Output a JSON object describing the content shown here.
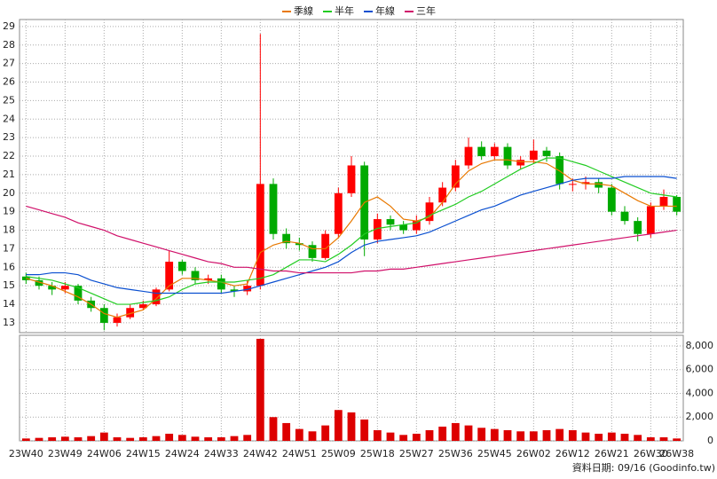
{
  "chart_data": [
    {
      "type": "candlestick",
      "open": [
        15.5,
        15.3,
        15.0,
        14.8,
        15.0,
        14.2,
        13.8,
        13.0,
        13.3,
        13.8,
        14.0,
        14.8,
        16.3,
        15.8,
        15.3,
        15.4,
        14.8,
        14.7,
        15.0,
        20.5,
        17.8,
        17.3,
        17.2,
        16.5,
        17.8,
        20.0,
        21.5,
        17.5,
        18.6,
        18.3,
        18.0,
        18.5,
        19.5,
        20.3,
        21.5,
        22.5,
        22.0,
        22.5,
        21.5,
        21.8,
        22.3,
        22.0,
        20.5,
        20.5,
        20.6,
        20.3,
        19.0,
        18.5,
        17.8,
        19.3,
        19.8
      ],
      "high": [
        15.7,
        15.5,
        15.2,
        15.2,
        15.1,
        14.4,
        14.0,
        13.5,
        14.0,
        14.2,
        14.9,
        16.9,
        16.4,
        16.0,
        15.6,
        15.6,
        15.0,
        15.3,
        28.6,
        20.8,
        18.1,
        17.6,
        17.4,
        18.0,
        20.3,
        22.0,
        21.7,
        18.9,
        18.8,
        18.5,
        18.8,
        19.8,
        20.6,
        21.8,
        23.0,
        22.8,
        22.7,
        22.7,
        22.0,
        22.9,
        22.5,
        22.2,
        20.8,
        20.9,
        20.8,
        20.5,
        19.3,
        18.7,
        19.5,
        20.2,
        19.9
      ],
      "low": [
        15.1,
        14.8,
        14.5,
        14.6,
        14.0,
        13.6,
        12.6,
        12.8,
        13.2,
        13.7,
        13.9,
        14.7,
        15.6,
        15.1,
        15.1,
        14.6,
        14.4,
        14.5,
        14.8,
        17.5,
        17.0,
        16.9,
        16.3,
        16.4,
        17.6,
        19.8,
        16.6,
        17.3,
        18.0,
        17.8,
        17.8,
        18.3,
        19.3,
        20.1,
        21.3,
        21.8,
        21.8,
        21.3,
        21.3,
        21.6,
        21.7,
        20.2,
        20.1,
        20.2,
        20.0,
        18.8,
        18.3,
        17.4,
        17.6,
        19.1,
        18.8
      ],
      "close": [
        15.3,
        15.0,
        14.8,
        15.0,
        14.2,
        13.8,
        13.0,
        13.3,
        13.8,
        14.0,
        14.8,
        16.3,
        15.8,
        15.3,
        15.4,
        14.8,
        14.7,
        15.0,
        20.5,
        17.8,
        17.3,
        17.2,
        16.5,
        17.8,
        20.0,
        21.5,
        17.5,
        18.6,
        18.3,
        18.0,
        18.5,
        19.5,
        20.3,
        21.5,
        22.5,
        22.0,
        22.5,
        21.5,
        21.8,
        22.3,
        22.0,
        20.5,
        20.5,
        20.6,
        20.3,
        19.0,
        18.5,
        17.8,
        19.3,
        19.8,
        19.0
      ],
      "up_color": "#ff0000",
      "down_color": "#00aa00",
      "series": [
        {
          "name": "季線",
          "color": "#e87800",
          "values": [
            15.4,
            15.2,
            15.0,
            14.7,
            14.4,
            14.0,
            13.5,
            13.3,
            13.5,
            13.7,
            14.3,
            15.0,
            15.4,
            15.4,
            15.3,
            15.2,
            15.0,
            15.1,
            16.8,
            17.2,
            17.4,
            17.3,
            17.0,
            17.0,
            17.6,
            18.5,
            19.5,
            19.8,
            19.3,
            18.6,
            18.5,
            18.7,
            19.5,
            20.5,
            21.2,
            21.6,
            21.8,
            21.8,
            21.7,
            21.7,
            21.6,
            21.2,
            20.7,
            20.5,
            20.5,
            20.4,
            20.0,
            19.6,
            19.3,
            19.3,
            19.3
          ]
        },
        {
          "name": "半年",
          "color": "#22cc22",
          "values": [
            15.5,
            15.4,
            15.3,
            15.1,
            14.9,
            14.6,
            14.3,
            14.0,
            14.0,
            14.1,
            14.2,
            14.4,
            14.8,
            15.1,
            15.2,
            15.2,
            15.2,
            15.3,
            15.4,
            15.6,
            16.0,
            16.4,
            16.4,
            16.3,
            16.7,
            17.2,
            17.8,
            18.1,
            18.2,
            18.3,
            18.4,
            18.8,
            19.1,
            19.4,
            19.8,
            20.1,
            20.5,
            20.9,
            21.3,
            21.6,
            21.9,
            21.9,
            21.7,
            21.5,
            21.2,
            20.9,
            20.6,
            20.3,
            20.0,
            19.9,
            19.8
          ]
        },
        {
          "name": "年線",
          "color": "#0a4fd0",
          "values": [
            15.6,
            15.6,
            15.7,
            15.7,
            15.6,
            15.3,
            15.1,
            14.9,
            14.8,
            14.7,
            14.6,
            14.6,
            14.6,
            14.6,
            14.6,
            14.6,
            14.7,
            14.8,
            15.0,
            15.2,
            15.4,
            15.6,
            15.8,
            16.0,
            16.3,
            16.8,
            17.2,
            17.4,
            17.5,
            17.6,
            17.7,
            17.9,
            18.2,
            18.5,
            18.8,
            19.1,
            19.3,
            19.6,
            19.9,
            20.1,
            20.3,
            20.5,
            20.7,
            20.8,
            20.8,
            20.8,
            20.9,
            20.9,
            20.9,
            20.9,
            20.8
          ]
        },
        {
          "name": "三年",
          "color": "#d0106a",
          "values": [
            19.3,
            19.1,
            18.9,
            18.7,
            18.4,
            18.2,
            18.0,
            17.7,
            17.5,
            17.3,
            17.1,
            16.9,
            16.7,
            16.5,
            16.3,
            16.2,
            16.0,
            16.0,
            15.9,
            15.8,
            15.8,
            15.7,
            15.7,
            15.7,
            15.7,
            15.7,
            15.8,
            15.8,
            15.9,
            15.9,
            16.0,
            16.1,
            16.2,
            16.3,
            16.4,
            16.5,
            16.6,
            16.7,
            16.8,
            16.9,
            17.0,
            17.1,
            17.2,
            17.3,
            17.4,
            17.5,
            17.6,
            17.7,
            17.8,
            17.9,
            18.0
          ]
        }
      ],
      "ylim": [
        12.47,
        29.38
      ],
      "yticks": [
        13,
        14,
        15,
        16,
        17,
        18,
        19,
        20,
        21,
        22,
        23,
        24,
        25,
        26,
        27,
        28,
        29
      ],
      "grid": true
    },
    {
      "type": "bar",
      "categories": [
        "23W40",
        null,
        null,
        "23W49",
        null,
        null,
        "24W06",
        null,
        null,
        "24W15",
        null,
        null,
        "24W24",
        null,
        null,
        "24W33",
        null,
        null,
        "24W42",
        null,
        null,
        "24W51",
        null,
        null,
        "25W09",
        null,
        null,
        "25W18",
        null,
        null,
        "25W27",
        null,
        null,
        "25W36",
        null,
        null,
        "25W45",
        null,
        null,
        "26W02",
        null,
        null,
        "26W12",
        null,
        null,
        "26W21",
        null,
        null,
        "26W30",
        null,
        "26W38"
      ],
      "values": [
        200,
        250,
        300,
        350,
        300,
        400,
        700,
        300,
        250,
        300,
        400,
        600,
        500,
        350,
        300,
        300,
        400,
        500,
        8600,
        2000,
        1500,
        1000,
        800,
        1300,
        2600,
        2400,
        1800,
        900,
        700,
        500,
        600,
        900,
        1200,
        1500,
        1300,
        1100,
        1000,
        900,
        800,
        800,
        900,
        1000,
        900,
        700,
        600,
        700,
        600,
        500,
        300,
        300,
        200
      ],
      "color": "#dd0000",
      "ylim": [
        0,
        8897
      ],
      "yticks": [
        0,
        {
          "value": 2000,
          "label": "2,000"
        },
        {
          "value": 4000,
          "label": "4,000"
        },
        {
          "value": 6000,
          "label": "6,000"
        },
        {
          "value": 8000,
          "label": "8,000"
        }
      ],
      "grid": true,
      "note": "資料日期: 09/16  (Goodinfo.tw)"
    }
  ]
}
